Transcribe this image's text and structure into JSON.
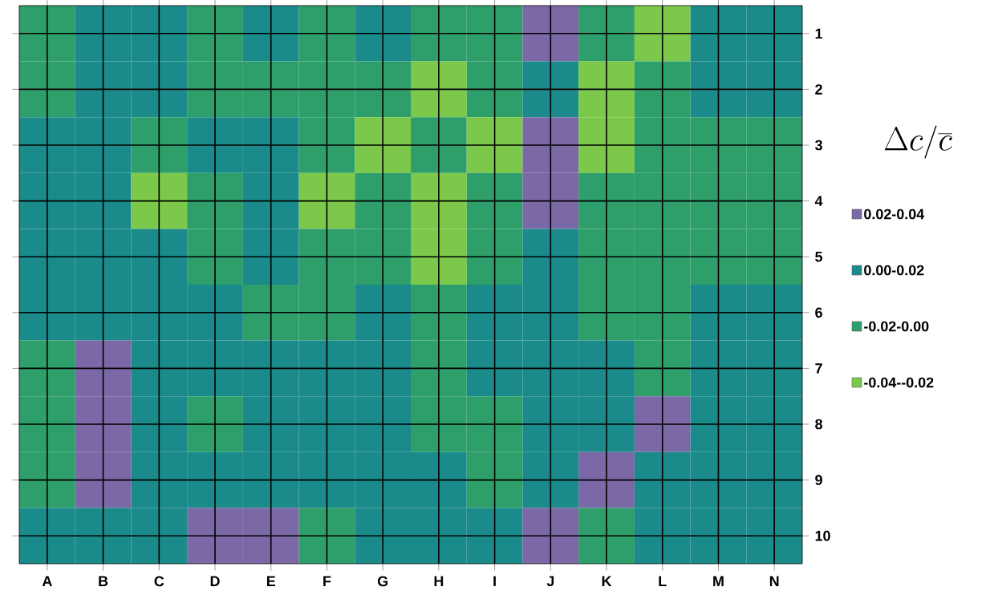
{
  "chart_data": {
    "type": "heatmap",
    "clabel": "\\Delta c/\\overline{c}",
    "categories": [
      "A",
      "B",
      "C",
      "D",
      "E",
      "F",
      "G",
      "H",
      "I",
      "J",
      "K",
      "L",
      "M",
      "N"
    ],
    "y_categories": [
      "1",
      "2",
      "3",
      "4",
      "5",
      "6",
      "7",
      "8",
      "9",
      "10"
    ],
    "cells": [
      [
        -0.01,
        0.01,
        0.01,
        -0.01,
        0.01,
        -0.01,
        0.01,
        -0.01,
        -0.01,
        0.03,
        -0.01,
        -0.03,
        0.01,
        0.01
      ],
      [
        -0.01,
        0.01,
        0.01,
        -0.01,
        -0.01,
        -0.01,
        -0.01,
        -0.03,
        -0.01,
        0.01,
        -0.03,
        -0.01,
        0.01,
        0.01
      ],
      [
        0.01,
        0.01,
        -0.01,
        0.01,
        0.01,
        -0.01,
        -0.03,
        -0.01,
        -0.03,
        0.03,
        -0.03,
        -0.01,
        -0.01,
        -0.01
      ],
      [
        0.01,
        0.01,
        -0.03,
        -0.01,
        0.01,
        -0.03,
        -0.01,
        -0.03,
        -0.01,
        0.03,
        -0.01,
        -0.01,
        -0.01,
        -0.01
      ],
      [
        0.01,
        0.01,
        0.01,
        -0.01,
        0.01,
        -0.01,
        -0.01,
        -0.03,
        -0.01,
        0.01,
        -0.01,
        -0.01,
        -0.01,
        -0.01
      ],
      [
        0.01,
        0.01,
        0.01,
        0.01,
        -0.01,
        -0.01,
        0.01,
        -0.01,
        0.01,
        0.01,
        -0.01,
        -0.01,
        0.01,
        0.01
      ],
      [
        -0.01,
        0.03,
        0.01,
        0.01,
        0.01,
        0.01,
        0.01,
        -0.01,
        0.01,
        0.01,
        0.01,
        -0.01,
        0.01,
        0.01
      ],
      [
        -0.01,
        0.03,
        0.01,
        -0.01,
        0.01,
        0.01,
        0.01,
        -0.01,
        -0.01,
        0.01,
        0.01,
        0.03,
        0.01,
        0.01
      ],
      [
        -0.01,
        0.03,
        0.01,
        0.01,
        0.01,
        0.01,
        0.01,
        0.01,
        -0.01,
        0.01,
        0.03,
        0.01,
        0.01,
        0.01
      ],
      [
        0.01,
        0.01,
        0.01,
        0.03,
        0.03,
        -0.01,
        0.01,
        0.01,
        0.01,
        0.03,
        -0.01,
        0.01,
        0.01,
        0.01
      ]
    ],
    "cticks": [
      {
        "value": 0.03,
        "label": "0.02-0.04"
      },
      {
        "value": 0.01,
        "label": "0.00-0.02"
      },
      {
        "value": -0.01,
        "label": "-0.02-0.00"
      },
      {
        "value": -0.03,
        "label": "-0.04--0.02"
      }
    ],
    "colors": [
      "#7b68a6",
      "#1a8a8a",
      "#2e9e6a",
      "#7cc84a"
    ],
    "grid": true
  }
}
